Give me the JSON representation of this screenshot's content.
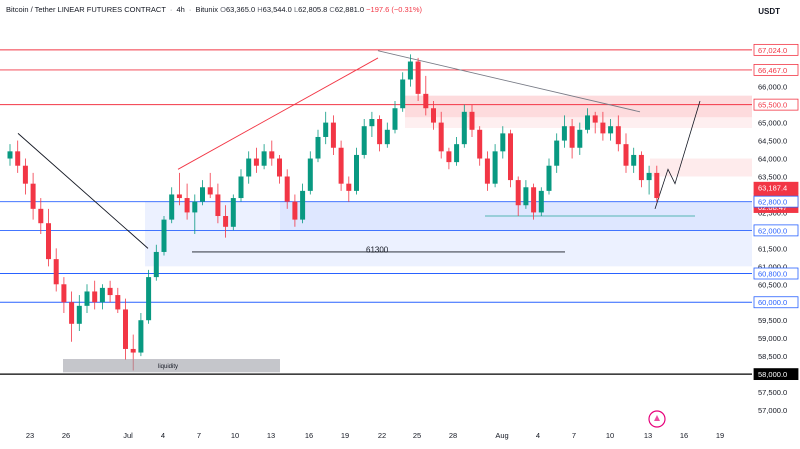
{
  "header": {
    "symbol": "Bitcoin / Tether LINEAR FUTURES CONTRACT",
    "interval": "4h",
    "exchange": "Bitunix",
    "open_label": "O",
    "open": "63,365.0",
    "high_label": "H",
    "high": "63,544.0",
    "low_label": "L",
    "low": "62,805.8",
    "close_label": "C",
    "close": "62,881.0",
    "change": "−197.6 (−0.31%)"
  },
  "chart_data": {
    "type": "candlestick",
    "price_unit": "USDT",
    "ylim": [
      56500,
      67800
    ],
    "y_ticks": [
      "67,000.0",
      "66,500.0",
      "66,000.0",
      "65,500.0",
      "65,000.0",
      "64,500.0",
      "64,000.0",
      "63,500.0",
      "63,000.0",
      "62,500.0",
      "62,000.0",
      "61,500.0",
      "61,000.0",
      "60,500.0",
      "60,000.0",
      "59,500.0",
      "59,000.0",
      "58,500.0",
      "58,000.0",
      "57,500.0",
      "57,000.0"
    ],
    "x_ticks": [
      "23",
      "26",
      "Jul",
      "4",
      "7",
      "10",
      "13",
      "16",
      "19",
      "22",
      "25",
      "28",
      "Aug",
      "4",
      "7",
      "10",
      "13",
      "16",
      "19"
    ],
    "price_badges": [
      {
        "value": "67,024.0",
        "kind": "level"
      },
      {
        "value": "66,467.0",
        "kind": "level"
      },
      {
        "value": "65,500.0",
        "kind": "level"
      },
      {
        "value": "63,187.4",
        "kind": "price"
      },
      {
        "value": "62,881.0",
        "kind": "price"
      },
      {
        "value": "02:08:47",
        "kind": "countdown"
      },
      {
        "value": "62,800.0",
        "kind": "level_blue"
      },
      {
        "value": "62,000.0",
        "kind": "level_blue"
      },
      {
        "value": "60,800.0",
        "kind": "level_blue"
      },
      {
        "value": "60,000.0",
        "kind": "level_blue"
      },
      {
        "value": "58,000.0",
        "kind": "level_black"
      }
    ],
    "horizontal_levels": [
      {
        "price": 67024,
        "color": "#f23645"
      },
      {
        "price": 66467,
        "color": "#f23645"
      },
      {
        "price": 65500,
        "color": "#f23645"
      },
      {
        "price": 62800,
        "color": "#2962ff"
      },
      {
        "price": 62000,
        "color": "#2962ff"
      },
      {
        "price": 60800,
        "color": "#2962ff"
      },
      {
        "price": 60000,
        "color": "#2962ff"
      },
      {
        "price": 58000,
        "color": "#000000"
      }
    ],
    "annotations": [
      {
        "text": "61300",
        "price": 61300
      },
      {
        "text": "liquidity",
        "price": 58220
      }
    ],
    "candles": [
      [
        0,
        64000,
        64400,
        63800,
        64200
      ],
      [
        1,
        64200,
        64500,
        63600,
        63800
      ],
      [
        2,
        63800,
        64000,
        63000,
        63300
      ],
      [
        3,
        63300,
        63600,
        62300,
        62600
      ],
      [
        4,
        62600,
        62900,
        61900,
        62200
      ],
      [
        5,
        62200,
        62600,
        61000,
        61200
      ],
      [
        6,
        61200,
        61500,
        60300,
        60500
      ],
      [
        7,
        60500,
        60700,
        59700,
        60000
      ],
      [
        8,
        60000,
        60300,
        58900,
        59400
      ],
      [
        9,
        59400,
        60200,
        59200,
        59900
      ],
      [
        10,
        59900,
        60500,
        59700,
        60300
      ],
      [
        11,
        60300,
        60600,
        59800,
        60000
      ],
      [
        12,
        60000,
        60500,
        59800,
        60400
      ],
      [
        13,
        60400,
        60600,
        60000,
        60200
      ],
      [
        14,
        60200,
        60400,
        59700,
        59800
      ],
      [
        15,
        59800,
        60100,
        58400,
        58700
      ],
      [
        16,
        58700,
        59100,
        58100,
        58600
      ],
      [
        17,
        58600,
        59700,
        58500,
        59500
      ],
      [
        18,
        59500,
        60900,
        59400,
        60700
      ],
      [
        19,
        60700,
        61600,
        60600,
        61400
      ],
      [
        20,
        61400,
        62400,
        61300,
        62300
      ],
      [
        21,
        62300,
        63200,
        62200,
        63000
      ],
      [
        22,
        63000,
        63600,
        62700,
        62900
      ],
      [
        23,
        62900,
        63300,
        62300,
        62500
      ],
      [
        24,
        62500,
        63000,
        61900,
        62800
      ],
      [
        25,
        62800,
        63400,
        62700,
        63200
      ],
      [
        26,
        63200,
        63600,
        62900,
        63000
      ],
      [
        27,
        63000,
        63300,
        62200,
        62400
      ],
      [
        28,
        62400,
        62700,
        61800,
        62100
      ],
      [
        29,
        62100,
        63000,
        62000,
        62900
      ],
      [
        30,
        62900,
        63700,
        62800,
        63500
      ],
      [
        31,
        63500,
        64200,
        63300,
        64000
      ],
      [
        32,
        64000,
        64300,
        63600,
        63800
      ],
      [
        33,
        63800,
        64400,
        63700,
        64200
      ],
      [
        34,
        64200,
        64500,
        63800,
        64000
      ],
      [
        35,
        64000,
        64100,
        63300,
        63500
      ],
      [
        36,
        63500,
        63700,
        62600,
        62800
      ],
      [
        37,
        62800,
        63000,
        62100,
        62300
      ],
      [
        38,
        62300,
        63300,
        62200,
        63100
      ],
      [
        39,
        63100,
        64200,
        63000,
        64000
      ],
      [
        40,
        64000,
        64800,
        63900,
        64600
      ],
      [
        41,
        64600,
        65300,
        64400,
        65000
      ],
      [
        42,
        65000,
        65200,
        64100,
        64300
      ],
      [
        43,
        64300,
        64500,
        63100,
        63300
      ],
      [
        44,
        63300,
        63500,
        62800,
        63100
      ],
      [
        45,
        63100,
        64300,
        63000,
        64100
      ],
      [
        46,
        64100,
        65100,
        64000,
        64900
      ],
      [
        47,
        64900,
        65300,
        64600,
        65100
      ],
      [
        48,
        65100,
        65200,
        64200,
        64400
      ],
      [
        49,
        64400,
        65000,
        64300,
        64800
      ],
      [
        50,
        64800,
        65600,
        64700,
        65400
      ],
      [
        51,
        65400,
        66400,
        65300,
        66200
      ],
      [
        52,
        66200,
        66900,
        66000,
        66700
      ],
      [
        53,
        66700,
        66800,
        65600,
        65800
      ],
      [
        54,
        65800,
        66300,
        65200,
        65400
      ],
      [
        55,
        65400,
        65600,
        64800,
        65000
      ],
      [
        56,
        65000,
        65300,
        64000,
        64200
      ],
      [
        57,
        64200,
        64300,
        63700,
        63900
      ],
      [
        58,
        63900,
        64600,
        63800,
        64400
      ],
      [
        59,
        64400,
        65500,
        64300,
        65300
      ],
      [
        60,
        65300,
        65500,
        64600,
        64800
      ],
      [
        61,
        64800,
        64900,
        63800,
        64000
      ],
      [
        62,
        64000,
        64200,
        63100,
        63300
      ],
      [
        63,
        63300,
        64400,
        63200,
        64200
      ],
      [
        64,
        64200,
        64900,
        64000,
        64700
      ],
      [
        65,
        64700,
        64800,
        63200,
        63400
      ],
      [
        66,
        63400,
        63500,
        62400,
        62700
      ],
      [
        67,
        62700,
        63400,
        62600,
        63200
      ],
      [
        68,
        63200,
        63300,
        62300,
        62500
      ],
      [
        69,
        62500,
        63200,
        62400,
        63100
      ],
      [
        70,
        63100,
        64000,
        63000,
        63800
      ],
      [
        71,
        63800,
        64700,
        63600,
        64500
      ],
      [
        72,
        64500,
        65200,
        64300,
        64900
      ],
      [
        73,
        64900,
        65100,
        64000,
        64300
      ],
      [
        74,
        64300,
        65000,
        64100,
        64800
      ],
      [
        75,
        64800,
        65400,
        64700,
        65200
      ],
      [
        76,
        65200,
        65300,
        64700,
        65000
      ],
      [
        77,
        65000,
        65300,
        64500,
        64700
      ],
      [
        78,
        64700,
        65100,
        64500,
        64900
      ],
      [
        79,
        64900,
        65200,
        64200,
        64400
      ],
      [
        80,
        64400,
        64700,
        63600,
        63800
      ],
      [
        81,
        63800,
        64300,
        63600,
        64100
      ],
      [
        82,
        64100,
        64200,
        63200,
        63400
      ],
      [
        83,
        63400,
        63800,
        63000,
        63600
      ],
      [
        84,
        63600,
        63800,
        62800,
        62900
      ]
    ]
  }
}
